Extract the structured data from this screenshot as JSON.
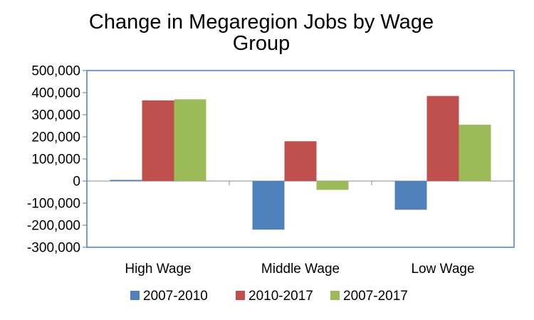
{
  "chart_data": {
    "type": "bar",
    "title_lines": [
      "Change in Megaregion Jobs by Wage",
      "Group"
    ],
    "categories": [
      "High Wage",
      "Middle Wage",
      "Low Wage"
    ],
    "series": [
      {
        "name": "2007-2010",
        "color": "#4f81bd",
        "values": [
          5000,
          -220000,
          -130000
        ]
      },
      {
        "name": "2010-2017",
        "color": "#c0504d",
        "values": [
          365000,
          180000,
          385000
        ]
      },
      {
        "name": "2007-2017",
        "color": "#9bbb59",
        "values": [
          370000,
          -40000,
          255000
        ]
      }
    ],
    "ylim": [
      -300000,
      500000
    ],
    "yticks": [
      500000,
      400000,
      300000,
      200000,
      100000,
      0,
      -100000,
      -200000,
      -300000
    ],
    "ytick_labels": [
      "500,000",
      "400,000",
      "300,000",
      "200,000",
      "100,000",
      "0",
      "-100,000",
      "-200,000",
      "-300,000"
    ],
    "legend_position": "bottom",
    "grid": false,
    "frame_color": "#4a7ebb"
  }
}
